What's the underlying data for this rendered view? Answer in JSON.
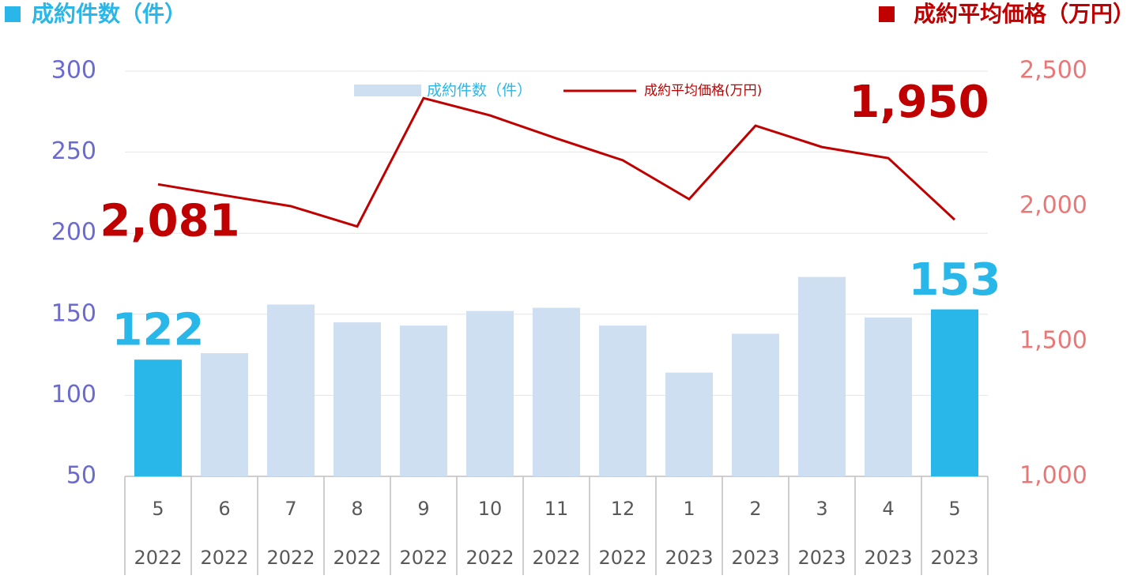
{
  "chart_data": {
    "type": "bar_line",
    "ylabel": "成約件数（件）",
    "y2label": "成約平均価格（万円）",
    "categories": [
      "5",
      "6",
      "7",
      "8",
      "9",
      "10",
      "11",
      "12",
      "1",
      "2",
      "3",
      "4",
      "5"
    ],
    "category_groups": [
      "2022",
      "2022",
      "2022",
      "2022",
      "2022",
      "2022",
      "2022",
      "2022",
      "2023",
      "2023",
      "2023",
      "2023",
      "2023"
    ],
    "series": [
      {
        "name": "成約件数（件）",
        "type": "bar",
        "color": "#cfdff2",
        "colors": [
          "#29b6e8",
          "#cfdff2",
          "#cfdff2",
          "#cfdff2",
          "#cfdff2",
          "#cfdff2",
          "#cfdff2",
          "#cfdff2",
          "#cfdff2",
          "#cfdff2",
          "#cfdff2",
          "#cfdff2",
          "#29b6e8"
        ],
        "values": [
          122,
          126,
          156,
          145,
          143,
          152,
          154,
          143,
          114,
          138,
          173,
          148,
          153
        ],
        "value_labels": [
          "122",
          null,
          null,
          null,
          null,
          null,
          null,
          null,
          null,
          null,
          null,
          null,
          "153"
        ]
      },
      {
        "name": "成約平均価格(万円)",
        "type": "line",
        "axis": "y2",
        "color": "#c00000",
        "values": [
          2081,
          2040,
          2000,
          1925,
          2400,
          2336,
          2251,
          2170,
          2026,
          2298,
          2219,
          2178,
          1950
        ],
        "value_labels": [
          "2,081",
          null,
          null,
          null,
          null,
          null,
          null,
          null,
          null,
          null,
          null,
          null,
          "1,950"
        ]
      }
    ],
    "ylim": [
      50,
      300
    ],
    "yticks": [
      50,
      100,
      150,
      200,
      250,
      300
    ],
    "y2lim": [
      1000,
      2500
    ],
    "y2ticks": [
      {
        "value": 1000,
        "label": "1,000"
      },
      {
        "value": 1500,
        "label": "1,500"
      },
      {
        "value": 2000,
        "label": "2,000"
      },
      {
        "value": 2500,
        "label": "2,500"
      }
    ],
    "grid": true,
    "legend": "top"
  }
}
